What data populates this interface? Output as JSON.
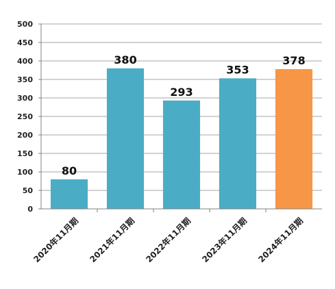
{
  "chart_data": {
    "type": "bar",
    "categories": [
      "2020年11月期",
      "2021年11月期",
      "2022年11月期",
      "2023年11月期",
      "2024年11月期"
    ],
    "values": [
      80,
      380,
      293,
      353,
      378
    ],
    "data_labels": [
      "80",
      "380",
      "293",
      "353",
      "378"
    ],
    "bar_colors": [
      "#4bacc6",
      "#4bacc6",
      "#4bacc6",
      "#4bacc6",
      "#f79646"
    ],
    "ylim": [
      0,
      500
    ],
    "yticks": [
      0,
      50,
      100,
      150,
      200,
      250,
      300,
      350,
      400,
      450,
      500
    ],
    "grid": true,
    "title": "",
    "xlabel": "",
    "ylabel": ""
  }
}
